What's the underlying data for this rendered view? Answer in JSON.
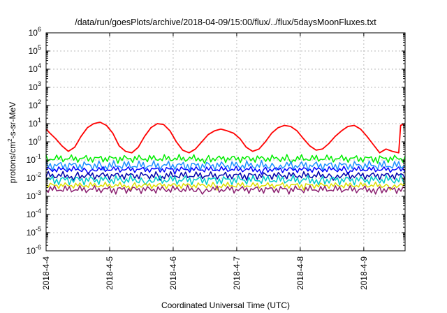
{
  "chart_data": {
    "type": "line",
    "title": "/data/run/goesPlots/archive/2018-04-09/15:00/flux/../flux/5daysMoonFluxes.txt",
    "xlabel": "Coordinated Universal Time (UTC)",
    "ylabel": {
      "base": "protons/cm",
      "sup": "2",
      "tail": "-s-sr-MeV"
    },
    "yscale": "log",
    "ylim_exp": [
      -6,
      6
    ],
    "ytick_exp": [
      -6,
      -5,
      -4,
      -3,
      -2,
      -1,
      0,
      1,
      2,
      3,
      4,
      5,
      6
    ],
    "xlim_days": [
      0,
      5.65
    ],
    "xticks": [
      {
        "day": 0,
        "label": "2018-4-4"
      },
      {
        "day": 1,
        "label": "2018-4-5"
      },
      {
        "day": 2,
        "label": "2018-4-6"
      },
      {
        "day": 3,
        "label": "2018-4-7"
      },
      {
        "day": 4,
        "label": "2018-4-8"
      },
      {
        "day": 5,
        "label": "2018-4-9"
      }
    ],
    "grid": true,
    "series": [
      {
        "color": "#ff0000",
        "x": [
          0,
          0.06,
          0.15,
          0.25,
          0.35,
          0.45,
          0.55,
          0.65,
          0.75,
          0.85,
          0.95,
          1.05,
          1.15,
          1.25,
          1.35,
          1.45,
          1.55,
          1.65,
          1.75,
          1.85,
          1.95,
          2.05,
          2.15,
          2.25,
          2.35,
          2.45,
          2.55,
          2.65,
          2.75,
          2.85,
          2.95,
          3.05,
          3.15,
          3.25,
          3.35,
          3.45,
          3.55,
          3.65,
          3.75,
          3.85,
          3.95,
          4.05,
          4.15,
          4.25,
          4.35,
          4.45,
          4.55,
          4.65,
          4.75,
          4.85,
          4.95,
          5.05,
          5.15,
          5.25,
          5.35,
          5.45,
          5.55,
          5.58,
          5.65
        ],
        "y": [
          5,
          3,
          1.5,
          0.6,
          0.3,
          0.5,
          2,
          6,
          10,
          12,
          8,
          3,
          0.6,
          0.3,
          0.25,
          0.5,
          2,
          6,
          10,
          9,
          4,
          1,
          0.35,
          0.25,
          0.4,
          1,
          2.5,
          4,
          5,
          4,
          3,
          1.5,
          0.5,
          0.3,
          0.4,
          1,
          3,
          6,
          8,
          7,
          4,
          1.5,
          0.6,
          0.35,
          0.4,
          0.8,
          2,
          4,
          7,
          8,
          5,
          2,
          0.7,
          0.25,
          0.4,
          0.3,
          0.25,
          8,
          10
        ]
      },
      {
        "color": "#00ee00",
        "flat": 0.12
      },
      {
        "color": "#1e90ff",
        "flat": 0.05
      },
      {
        "color": "#0000ff",
        "flat": 0.03
      },
      {
        "color": "#0000aa",
        "flat": 0.014
      },
      {
        "color": "#00cccc",
        "flat": 0.008
      },
      {
        "color": "#dddd00",
        "flat": 0.004
      },
      {
        "color": "#8b2070",
        "flat": 0.0024
      }
    ]
  }
}
